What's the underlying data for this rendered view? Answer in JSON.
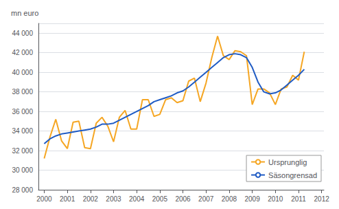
{
  "chart_data": {
    "type": "line",
    "ylabel": "mn euro",
    "x": [
      2000,
      2000.25,
      2000.5,
      2000.75,
      2001,
      2001.25,
      2001.5,
      2001.75,
      2002,
      2002.25,
      2002.5,
      2002.75,
      2003,
      2003.25,
      2003.5,
      2003.75,
      2004,
      2004.25,
      2004.5,
      2004.75,
      2005,
      2005.25,
      2005.5,
      2005.75,
      2006,
      2006.25,
      2006.5,
      2006.75,
      2007,
      2007.25,
      2007.5,
      2007.75,
      2008,
      2008.25,
      2008.5,
      2008.75,
      2009,
      2009.25,
      2009.5,
      2009.75,
      2010,
      2010.25,
      2010.5,
      2010.75,
      2011,
      2011.25
    ],
    "series": [
      {
        "name": "Ursprunglig",
        "color": "#f5a623",
        "values": [
          31200,
          33400,
          35200,
          33000,
          32200,
          34900,
          35000,
          32300,
          32200,
          34800,
          35400,
          34500,
          32900,
          35400,
          36100,
          34200,
          34200,
          37200,
          37200,
          35500,
          35700,
          37200,
          37400,
          36900,
          37100,
          39100,
          39400,
          37000,
          38900,
          41500,
          43700,
          41700,
          41300,
          42200,
          42100,
          41700,
          36700,
          38300,
          38300,
          37900,
          36700,
          38300,
          38500,
          39700,
          39200,
          42100
        ]
      },
      {
        "name": "Säsongrensad",
        "color": "#1f5bc4",
        "values": [
          32700,
          33200,
          33500,
          33700,
          33800,
          33900,
          34000,
          34100,
          34200,
          34400,
          34700,
          34700,
          34800,
          35100,
          35400,
          35700,
          36000,
          36300,
          36600,
          37000,
          37200,
          37400,
          37600,
          37900,
          38100,
          38500,
          39000,
          39500,
          40000,
          40500,
          41000,
          41500,
          41800,
          41900,
          41800,
          41500,
          40500,
          39000,
          38000,
          37800,
          37900,
          38200,
          38700,
          39200,
          39700,
          40300
        ]
      }
    ],
    "xlim": [
      1999.75,
      2012.1
    ],
    "xticks": [
      2000,
      2001,
      2002,
      2003,
      2004,
      2005,
      2006,
      2007,
      2008,
      2009,
      2010,
      2011,
      2012
    ],
    "ylim": [
      28000,
      45000
    ],
    "yticks": [
      {
        "value": 28000,
        "label": "28 000"
      },
      {
        "value": 30000,
        "label": "30 000"
      },
      {
        "value": 32000,
        "label": "32 000"
      },
      {
        "value": 34000,
        "label": "34 000"
      },
      {
        "value": 36000,
        "label": "36 000"
      },
      {
        "value": 38000,
        "label": "38 000"
      },
      {
        "value": 40000,
        "label": "40 000"
      },
      {
        "value": 42000,
        "label": "42 000"
      },
      {
        "value": 44000,
        "label": "44 000"
      }
    ],
    "grid": true,
    "legend": "lower right"
  }
}
